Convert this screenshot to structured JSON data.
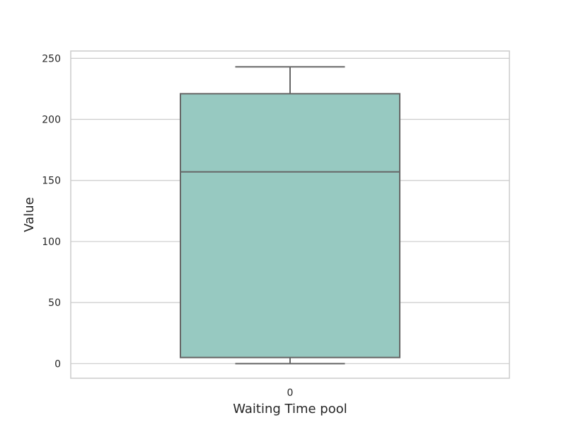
{
  "chart_data": {
    "type": "box",
    "title": "",
    "xlabel": "Waiting Time pool",
    "ylabel": "Value",
    "categories": [
      "0"
    ],
    "boxes": [
      {
        "category": "0",
        "whisker_low": 0,
        "q1": 5,
        "median": 157,
        "q3": 221,
        "whisker_high": 243
      }
    ],
    "ylim": [
      -12,
      256
    ],
    "yticks": [
      0,
      50,
      100,
      150,
      200,
      250
    ],
    "grid": true,
    "legend": "none",
    "colors": {
      "box_fill": "#97c9c1",
      "box_line": "#666666",
      "grid": "#cccccc",
      "frame": "#cccccc"
    }
  }
}
